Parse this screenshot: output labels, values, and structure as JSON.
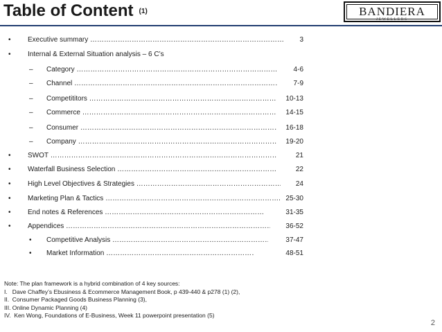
{
  "title": "Table of Content",
  "title_suffix": "(1)",
  "logo": {
    "main": "BANDIERA",
    "sub": "JEWELLERS"
  },
  "toc": [
    {
      "bullet": "•",
      "label": "Executive summary ………………………………………………………………………………",
      "page": "3"
    },
    {
      "bullet": "•",
      "label": "Internal & External Situation analysis – 6 C’s",
      "page": ""
    },
    {
      "bullet": "–",
      "label": "Category ………………………………………………………………………………………",
      "page": "4-6"
    },
    {
      "bullet": "–",
      "label": "Channel ………………………………………………………………………………………",
      "page": "7-9"
    },
    {
      "bullet": "–",
      "label": "Competititors ………………………………………………………………………………….",
      "page": "10-13"
    },
    {
      "bullet": "–",
      "label": "Commerce ……………………………………………………………………………………",
      "page": "14-15"
    },
    {
      "bullet": "–",
      "label": "Consumer ……………………………………………………………………………………",
      "page": "16-18"
    },
    {
      "bullet": "–",
      "label": "Company ……………………………………………………………………………………..",
      "page": "19-20"
    },
    {
      "bullet": "•",
      "label": "SWOT …………………………………………………………………………………………………",
      "page": "21"
    },
    {
      "bullet": "•",
      "label": "Waterfall Business Selection ………………………………………………………………..",
      "page": "22"
    },
    {
      "bullet": "•",
      "label": "High Level Objectives & Strategies ……………………………………………………………",
      "page": "24"
    },
    {
      "bullet": "•",
      "label": "Marketing Plan & Tactics ………………………………………………………………….",
      "page": "25-30"
    },
    {
      "bullet": "•",
      "label": "End notes & References ………………………………………………………………..",
      "page": "31-35"
    },
    {
      "bullet": "•",
      "label": "Appendices ……………………………………………………………………………………….",
      "page": "36-52"
    },
    {
      "bullet": "•",
      "label": "Competitive Analysis ………………………………………………………………..",
      "page": "37-47"
    },
    {
      "bullet": "•",
      "label": "Market Information …………………………………………………………….",
      "page": "48-51"
    }
  ],
  "note": {
    "intro": "Note: The plan framework is a hybrid combination of 4 key sources:",
    "items": [
      "I.   Dave Chaffey’s Ebusiness & Ecommerce Management Book, p 439-440 & p278 (1) (2),",
      "II.  Consumer Packaged Goods Business Planning (3),",
      "III. Online Dynamic Planning (4)",
      "IV.  Ken Wong, Foundations of E-Business, Week 11 powerpoint presentation (5)"
    ]
  },
  "page_number": "2"
}
